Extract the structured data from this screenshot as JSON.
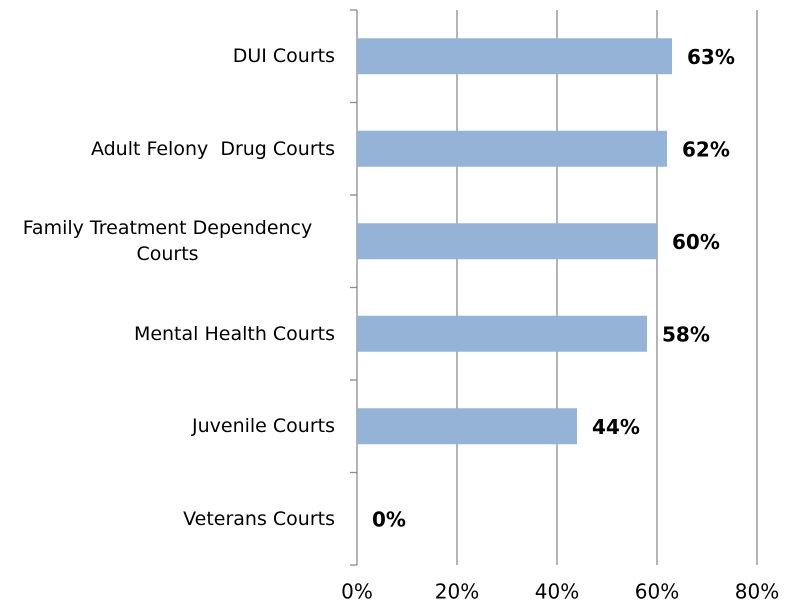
{
  "chart_data": {
    "type": "hbar",
    "categories": [
      "DUI Courts",
      "Adult Felony  Drug Courts",
      "Family Treatment Dependency Courts",
      "Mental Health Courts",
      "Juvenile Courts",
      "Veterans Courts"
    ],
    "values": [
      63,
      62,
      60,
      58,
      44,
      0
    ],
    "value_labels": [
      "63%",
      "62%",
      "60%",
      "58%",
      "44%",
      "0%"
    ],
    "color": "#95b3d7",
    "xlim": [
      0,
      80
    ],
    "xticks": [
      {
        "value": 0,
        "label": "0%"
      },
      {
        "value": 20,
        "label": "20%"
      },
      {
        "value": 40,
        "label": "40%"
      },
      {
        "value": 60,
        "label": "60%"
      },
      {
        "value": 80,
        "label": "80%"
      }
    ],
    "grid": true
  }
}
